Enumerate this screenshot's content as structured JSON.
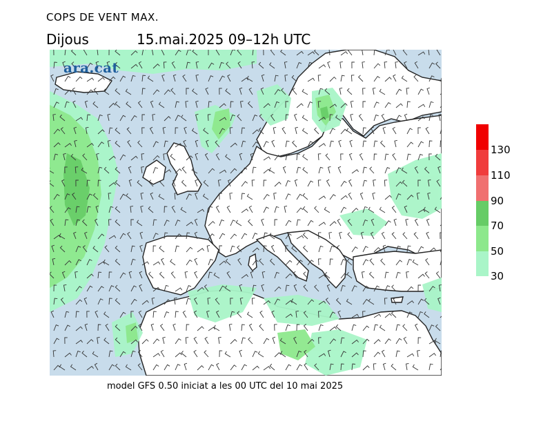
{
  "header": {
    "title": "COPS DE VENT MAX.",
    "day": "Dijous",
    "datetime": "15.mai.2025 09–12h UTC"
  },
  "logo": {
    "text": "ara.cat"
  },
  "footer": {
    "text": "model GFS 0.50 iniciat a les 00 UTC del 10 mai 2025"
  },
  "legend": {
    "labels": [
      "30",
      "50",
      "70",
      "90",
      "110",
      "130"
    ],
    "colors": {
      "30_50": "#a9f5c8",
      "50_70": "#8de88c",
      "70_90": "#66cc66",
      "90_110": "#f07070",
      "110_130": "#f03c3c",
      "130_plus": "#f00000"
    }
  },
  "map_colors": {
    "sea": "#c8dceb",
    "land": "#ffffff",
    "wind_30_50": "#a9f5c8",
    "wind_50_70": "#8de88c",
    "wind_70_90": "#66cc66",
    "coast": "#222222"
  }
}
